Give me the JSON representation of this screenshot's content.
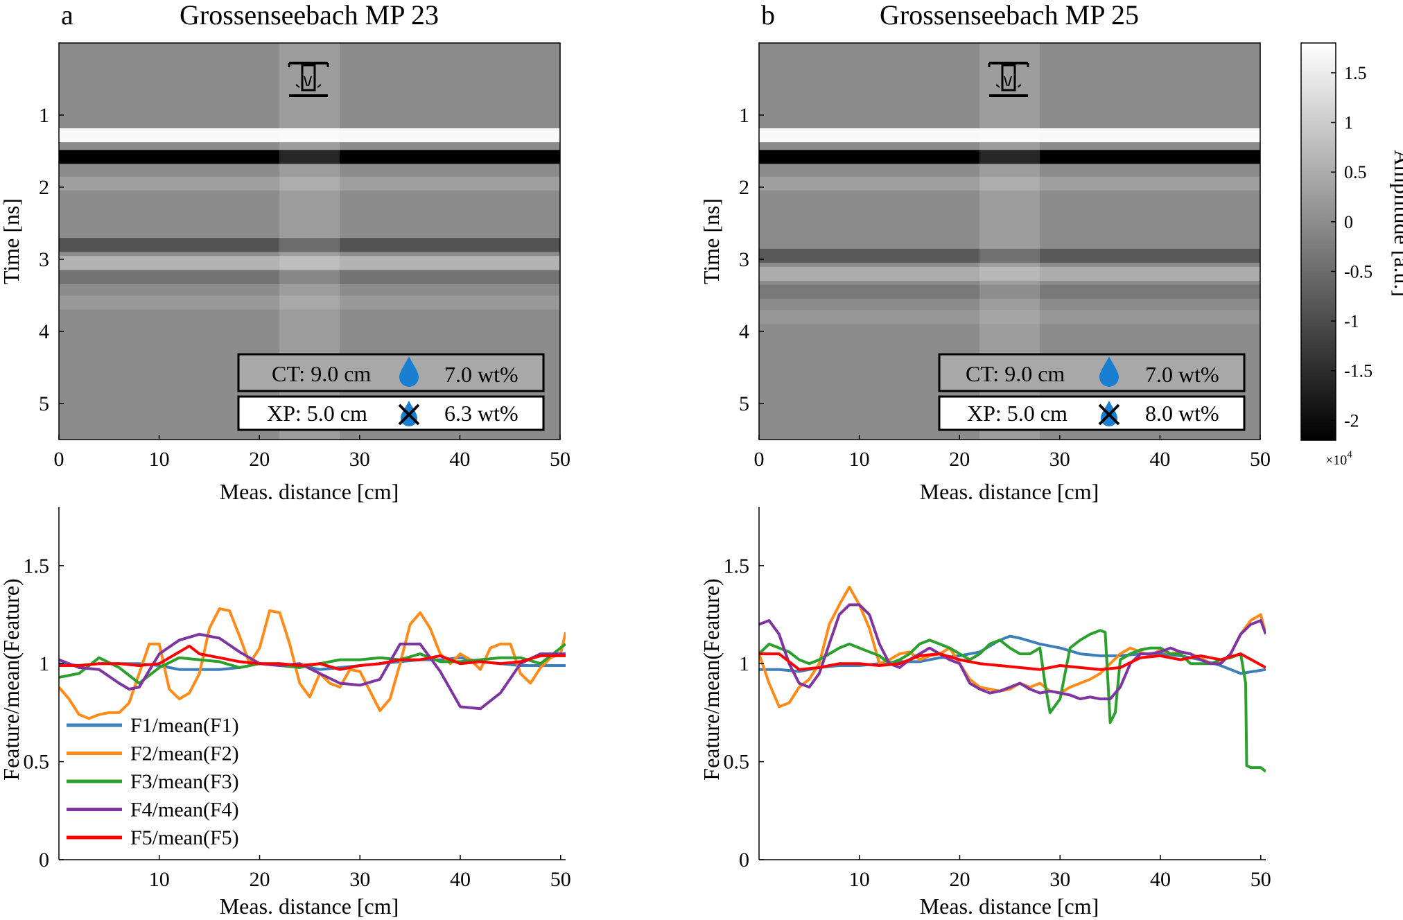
{
  "panels": [
    {
      "letter": "a",
      "title": "Grossenseebach MP 23",
      "ct_label": "CT: 9.0 cm",
      "ct_moisture": "7.0 wt%",
      "xp_label": "XP: 5.0 cm",
      "xp_moisture": "6.3 wt%"
    },
    {
      "letter": "b",
      "title": "Grossenseebach MP 25",
      "ct_label": "CT: 9.0 cm",
      "ct_moisture": "7.0 wt%",
      "xp_label": "XP: 5.0 cm",
      "xp_moisture": "8.0 wt%"
    }
  ],
  "colorbar": {
    "label": "Amplitude [a.u.]",
    "ticks": [
      "1.5",
      "1",
      "0.5",
      "0",
      "-0.5",
      "-1",
      "-1.5",
      "-2"
    ],
    "exponent_base": "×10",
    "exponent_power": "4"
  },
  "icons": {
    "core_sample": "core-drill-icon",
    "moisture": "water-drop-icon",
    "moisture_crossed": "water-drop-crossed-icon"
  },
  "colors": {
    "F1": "#3f7fb9",
    "F2": "#ff8c1a",
    "F3": "#2ca02c",
    "F4": "#7f35a0",
    "F5": "#ff0000",
    "drop": "#1a7fd1"
  },
  "chart_data": [
    {
      "type": "heatmap",
      "panel": "a",
      "title": "Grossenseebach MP 23",
      "xlabel": "Meas. distance [cm]",
      "ylabel": "Time [ns]",
      "xlim": [
        0,
        50
      ],
      "ylim": [
        5.5,
        0.0
      ],
      "xticks": [
        0,
        10,
        20,
        30,
        40,
        50
      ],
      "yticks": [
        1,
        2,
        3,
        4,
        5
      ],
      "highlight_x_range": [
        22,
        28
      ],
      "bands": [
        {
          "time": 1.28,
          "amplitude": 1.7
        },
        {
          "time": 1.58,
          "amplitude": -2.2
        },
        {
          "time": 1.95,
          "amplitude": 0.3
        },
        {
          "time": 2.8,
          "amplitude": -0.9
        },
        {
          "time": 3.05,
          "amplitude": 0.6
        },
        {
          "time": 3.25,
          "amplitude": -0.4
        },
        {
          "time": 3.6,
          "amplitude": 0.2
        }
      ]
    },
    {
      "type": "heatmap",
      "panel": "b",
      "title": "Grossenseebach MP 25",
      "xlabel": "Meas. distance [cm]",
      "ylabel": "Time [ns]",
      "xlim": [
        0,
        50
      ],
      "ylim": [
        5.5,
        0.0
      ],
      "xticks": [
        0,
        10,
        20,
        30,
        40,
        50
      ],
      "yticks": [
        1,
        2,
        3,
        4,
        5
      ],
      "highlight_x_range": [
        22,
        28
      ],
      "bands": [
        {
          "time": 1.28,
          "amplitude": 1.7
        },
        {
          "time": 1.58,
          "amplitude": -2.2
        },
        {
          "time": 1.95,
          "amplitude": 0.3
        },
        {
          "time": 2.95,
          "amplitude": -0.8
        },
        {
          "time": 3.2,
          "amplitude": 0.5
        },
        {
          "time": 3.45,
          "amplitude": -0.3
        },
        {
          "time": 3.8,
          "amplitude": 0.15
        }
      ]
    },
    {
      "type": "line",
      "panel": "a",
      "xlabel": "Meas. distance [cm]",
      "ylabel": "Feature/mean(Feature)",
      "xlim": [
        0,
        50.5
      ],
      "ylim": [
        0,
        1.8
      ],
      "xticks": [
        10,
        20,
        30,
        40,
        50
      ],
      "yticks": [
        0,
        0.5,
        1,
        1.5
      ],
      "legend_position": "bottom-left",
      "series": [
        {
          "name": "F1/mean(F1)",
          "x": [
            0,
            2,
            4,
            6,
            8,
            10,
            12,
            14,
            16,
            18,
            20,
            22,
            24,
            26,
            28,
            30,
            32,
            34,
            36,
            38,
            40,
            42,
            44,
            46,
            48,
            50.5
          ],
          "y": [
            1.0,
            0.99,
            1.0,
            1.0,
            1.0,
            0.99,
            0.97,
            0.97,
            0.97,
            0.98,
            1.0,
            1.0,
            0.99,
            0.97,
            0.98,
            0.99,
            1.0,
            1.01,
            1.02,
            1.02,
            1.03,
            1.01,
            1.0,
            0.99,
            0.99,
            0.99
          ]
        },
        {
          "name": "F2/mean(F2)",
          "x": [
            0,
            1,
            2,
            3,
            4,
            5,
            6,
            7,
            8,
            9,
            10,
            11,
            12,
            13,
            14,
            15,
            16,
            17,
            18,
            19,
            20,
            21,
            22,
            23,
            24,
            25,
            26,
            27,
            28,
            29,
            30,
            31,
            32,
            33,
            34,
            35,
            36,
            37,
            38,
            39,
            40,
            41,
            42,
            43,
            44,
            45,
            46,
            47,
            48,
            49,
            50,
            50.5
          ],
          "y": [
            0.88,
            0.82,
            0.74,
            0.72,
            0.74,
            0.75,
            0.75,
            0.8,
            0.95,
            1.1,
            1.1,
            0.87,
            0.82,
            0.85,
            0.95,
            1.18,
            1.28,
            1.27,
            1.14,
            1.0,
            1.08,
            1.27,
            1.26,
            1.1,
            0.9,
            0.83,
            0.95,
            0.9,
            0.88,
            0.97,
            0.96,
            0.86,
            0.76,
            0.82,
            1.0,
            1.2,
            1.26,
            1.18,
            1.05,
            1.0,
            1.05,
            1.02,
            0.97,
            1.08,
            1.1,
            1.1,
            0.95,
            0.9,
            0.98,
            1.03,
            1.05,
            1.16
          ]
        },
        {
          "name": "F3/mean(F3)",
          "x": [
            0,
            2,
            4,
            6,
            8,
            10,
            12,
            14,
            16,
            18,
            20,
            22,
            24,
            26,
            28,
            30,
            32,
            34,
            36,
            38,
            40,
            42,
            44,
            46,
            48,
            50.5
          ],
          "y": [
            0.93,
            0.95,
            1.03,
            0.98,
            0.9,
            0.98,
            1.03,
            1.02,
            1.01,
            0.98,
            1.0,
            0.99,
            0.98,
            1.0,
            1.02,
            1.02,
            1.03,
            1.02,
            1.05,
            1.01,
            1.01,
            1.02,
            1.03,
            1.03,
            1.0,
            1.1
          ]
        },
        {
          "name": "F4/mean(F4)",
          "x": [
            0,
            2,
            4,
            6,
            7,
            8,
            10,
            12,
            14,
            16,
            18,
            20,
            22,
            24,
            26,
            28,
            30,
            32,
            34,
            36,
            38,
            40,
            42,
            44,
            46,
            48,
            50.5
          ],
          "y": [
            1.02,
            0.98,
            0.97,
            0.9,
            0.87,
            0.88,
            1.05,
            1.12,
            1.15,
            1.13,
            1.06,
            1.0,
            0.99,
            1.0,
            0.95,
            0.9,
            0.89,
            0.92,
            1.1,
            1.1,
            0.96,
            0.78,
            0.77,
            0.85,
            1.0,
            1.05,
            1.05
          ]
        },
        {
          "name": "F5/mean(F5)",
          "x": [
            0,
            2,
            4,
            6,
            8,
            10,
            12,
            13,
            14,
            16,
            18,
            20,
            22,
            24,
            26,
            28,
            30,
            32,
            34,
            36,
            38,
            40,
            42,
            44,
            46,
            48,
            50.5
          ],
          "y": [
            0.99,
            0.99,
            1.0,
            1.0,
            0.99,
            1.0,
            1.06,
            1.09,
            1.05,
            1.03,
            1.01,
            1.0,
            1.0,
            0.99,
            1.0,
            0.97,
            0.99,
            1.0,
            1.02,
            1.02,
            1.04,
            1.0,
            1.01,
            1.0,
            1.01,
            1.04,
            1.04
          ]
        }
      ]
    },
    {
      "type": "line",
      "panel": "b",
      "xlabel": "Meas. distance [cm]",
      "ylabel": "Feature/mean(Feature)",
      "xlim": [
        0,
        50.5
      ],
      "ylim": [
        0,
        1.8
      ],
      "xticks": [
        10,
        20,
        30,
        40,
        50
      ],
      "yticks": [
        0,
        0.5,
        1,
        1.5
      ],
      "series": [
        {
          "name": "F1/mean(F1)",
          "x": [
            0,
            2,
            4,
            6,
            8,
            10,
            12,
            14,
            16,
            18,
            20,
            22,
            24,
            25,
            26,
            28,
            30,
            32,
            34,
            36,
            38,
            40,
            42,
            44,
            46,
            48,
            50.5
          ],
          "y": [
            0.97,
            0.97,
            0.96,
            0.98,
            0.99,
            0.99,
            1.0,
            1.01,
            1.01,
            1.03,
            1.04,
            1.06,
            1.12,
            1.14,
            1.13,
            1.1,
            1.08,
            1.05,
            1.04,
            1.04,
            1.05,
            1.05,
            1.04,
            1.02,
            0.99,
            0.95,
            0.97
          ]
        },
        {
          "name": "F2/mean(F2)",
          "x": [
            0,
            1,
            2,
            3,
            4,
            5,
            6,
            7,
            8,
            9,
            10,
            11,
            12,
            13,
            14,
            15,
            16,
            17,
            18,
            19,
            20,
            21,
            22,
            23,
            24,
            25,
            26,
            27,
            28,
            29,
            30,
            31,
            32,
            33,
            34,
            35,
            36,
            37,
            38,
            39,
            40,
            41,
            42,
            43,
            44,
            45,
            46,
            47,
            48,
            49,
            50,
            50.5
          ],
          "y": [
            1.05,
            0.9,
            0.78,
            0.8,
            0.88,
            0.92,
            1.0,
            1.2,
            1.3,
            1.39,
            1.3,
            1.18,
            1.0,
            1.02,
            1.05,
            1.06,
            1.02,
            1.04,
            1.05,
            1.08,
            1.0,
            0.92,
            0.88,
            0.87,
            0.86,
            0.87,
            0.9,
            0.88,
            0.9,
            0.86,
            0.85,
            0.88,
            0.9,
            0.92,
            0.95,
            1.0,
            1.05,
            1.08,
            1.06,
            1.04,
            1.07,
            1.05,
            1.06,
            1.05,
            1.03,
            1.0,
            1.0,
            1.05,
            1.15,
            1.22,
            1.25,
            1.15
          ]
        },
        {
          "name": "F3/mean(F3)",
          "x": [
            0,
            1,
            2,
            3,
            4,
            5,
            6,
            7,
            8,
            9,
            10,
            11,
            12,
            13,
            14,
            15,
            16,
            17,
            18,
            19,
            20,
            21,
            22,
            23,
            24,
            25,
            26,
            27,
            28,
            28.5,
            29,
            30,
            31,
            32,
            33,
            34,
            34.5,
            35,
            35.5,
            36,
            37,
            38,
            39,
            40,
            41,
            42,
            43,
            44,
            45,
            46,
            47,
            48,
            48.5,
            48.6,
            49,
            50,
            50.5
          ],
          "y": [
            1.05,
            1.1,
            1.08,
            1.06,
            1.02,
            1.0,
            1.02,
            1.05,
            1.08,
            1.1,
            1.08,
            1.06,
            1.04,
            1.0,
            1.02,
            1.05,
            1.1,
            1.12,
            1.1,
            1.08,
            1.05,
            1.02,
            1.05,
            1.1,
            1.12,
            1.08,
            1.05,
            1.05,
            1.08,
            0.9,
            0.75,
            0.82,
            1.08,
            1.12,
            1.15,
            1.17,
            1.16,
            0.7,
            0.75,
            1.02,
            1.05,
            1.07,
            1.08,
            1.08,
            1.05,
            1.05,
            1.0,
            1.0,
            1.0,
            1.02,
            1.03,
            1.05,
            0.9,
            0.48,
            0.47,
            0.47,
            0.45
          ]
        },
        {
          "name": "F4/mean(F4)",
          "x": [
            0,
            1,
            2,
            3,
            4,
            5,
            6,
            7,
            8,
            9,
            10,
            11,
            12,
            13,
            14,
            15,
            16,
            17,
            18,
            19,
            20,
            21,
            22,
            23,
            24,
            25,
            26,
            27,
            28,
            29,
            30,
            31,
            32,
            33,
            34,
            35,
            36,
            37,
            38,
            39,
            40,
            41,
            42,
            43,
            44,
            45,
            46,
            47,
            48,
            49,
            50,
            50.5
          ],
          "y": [
            1.2,
            1.22,
            1.15,
            1.0,
            0.9,
            0.88,
            0.95,
            1.1,
            1.25,
            1.3,
            1.3,
            1.25,
            1.1,
            1.0,
            0.98,
            1.02,
            1.05,
            1.08,
            1.05,
            1.02,
            1.0,
            0.9,
            0.87,
            0.85,
            0.86,
            0.88,
            0.9,
            0.87,
            0.85,
            0.86,
            0.85,
            0.84,
            0.82,
            0.83,
            0.82,
            0.82,
            0.88,
            1.0,
            1.05,
            1.05,
            1.06,
            1.08,
            1.06,
            1.05,
            1.02,
            1.0,
            1.0,
            1.05,
            1.15,
            1.2,
            1.22,
            1.15
          ]
        },
        {
          "name": "F5/mean(F5)",
          "x": [
            0,
            2,
            4,
            6,
            8,
            10,
            12,
            14,
            16,
            18,
            20,
            22,
            24,
            26,
            28,
            30,
            32,
            34,
            36,
            38,
            40,
            42,
            44,
            46,
            48,
            50.5
          ],
          "y": [
            1.05,
            1.05,
            0.97,
            0.98,
            1.0,
            1.0,
            0.99,
            1.0,
            1.04,
            1.05,
            1.02,
            1.0,
            0.99,
            0.98,
            0.97,
            0.99,
            0.98,
            0.97,
            0.98,
            1.03,
            1.04,
            1.02,
            1.04,
            1.02,
            1.05,
            0.98
          ]
        }
      ]
    }
  ]
}
